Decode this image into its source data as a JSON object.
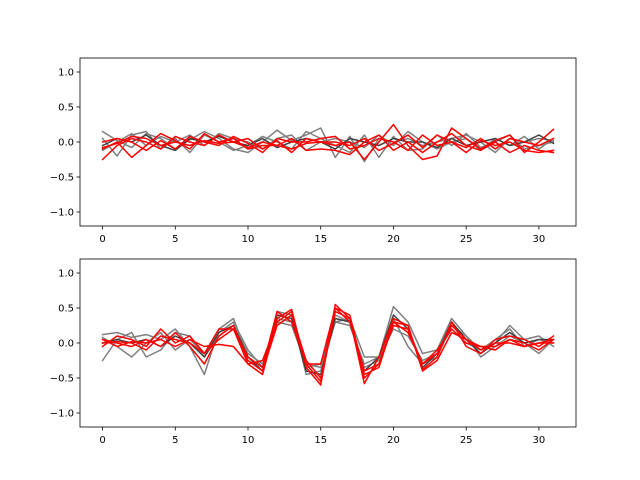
{
  "chart_data": [
    {
      "type": "line",
      "title": "",
      "xlabel": "",
      "ylabel": "",
      "xlim": [
        -1.55,
        32.55
      ],
      "ylim": [
        -1.2,
        1.2
      ],
      "xticks": [
        0,
        5,
        10,
        15,
        20,
        25,
        30
      ],
      "yticks": [
        -1.0,
        -0.5,
        0.0,
        0.5,
        1.0
      ],
      "xtick_labels": [
        "0",
        "5",
        "10",
        "15",
        "20",
        "25",
        "30"
      ],
      "ytick_labels": [
        "−1.0",
        "−0.5",
        "0.0",
        "0.5",
        "1.0"
      ],
      "grid": false,
      "x": [
        0,
        1,
        2,
        3,
        4,
        5,
        6,
        7,
        8,
        9,
        10,
        11,
        12,
        13,
        14,
        15,
        16,
        17,
        18,
        19,
        20,
        21,
        22,
        23,
        24,
        25,
        26,
        27,
        28,
        29,
        30,
        31
      ],
      "series": [
        {
          "color": "#7f7f7f",
          "values": [
            0.15,
            0.02,
            -0.08,
            0.12,
            0.05,
            -0.1,
            0.03,
            0.15,
            0.05,
            -0.1,
            -0.15,
            0.0,
            0.17,
            0.02,
            0.1,
            0.2,
            -0.22,
            0.08,
            -0.28,
            0.05,
            0.0,
            0.05,
            -0.05,
            0.0,
            0.05,
            0.1,
            0.0,
            -0.15,
            0.05,
            0.0,
            0.05,
            0.02
          ]
        },
        {
          "color": "#7f7f7f",
          "values": [
            0.05,
            -0.2,
            0.1,
            0.15,
            -0.1,
            0.05,
            -0.15,
            0.1,
            0.0,
            -0.12,
            -0.05,
            0.08,
            0.0,
            -0.1,
            0.15,
            0.05,
            -0.05,
            -0.15,
            0.1,
            -0.22,
            0.08,
            -0.12,
            -0.1,
            0.1,
            -0.05,
            0.12,
            -0.08,
            0.0,
            0.1,
            -0.1,
            -0.05,
            0.0
          ]
        },
        {
          "color": "#7f7f7f",
          "values": [
            -0.12,
            0.0,
            0.12,
            -0.05,
            0.08,
            0.0,
            0.1,
            -0.05,
            0.12,
            0.05,
            0.0,
            -0.1,
            0.05,
            0.1,
            -0.12,
            0.0,
            0.05,
            0.0,
            -0.08,
            0.1,
            -0.05,
            0.15,
            0.0,
            -0.1,
            0.0,
            0.05,
            -0.12,
            0.05,
            -0.05,
            0.08,
            -0.1,
            0.05
          ]
        },
        {
          "color": "#404040",
          "values": [
            -0.05,
            0.05,
            0.0,
            0.1,
            -0.05,
            -0.12,
            0.05,
            0.0,
            0.08,
            0.0,
            -0.05,
            0.05,
            -0.08,
            0.0,
            0.05,
            0.0,
            -0.1,
            0.05,
            0.0,
            -0.05,
            0.05,
            0.0,
            0.0,
            -0.08,
            0.05,
            -0.05,
            0.0,
            0.05,
            -0.05,
            0.0,
            0.1,
            -0.02
          ]
        },
        {
          "color": "#ff0000",
          "values": [
            -0.25,
            -0.05,
            0.05,
            0.0,
            -0.1,
            0.08,
            0.0,
            -0.05,
            0.1,
            0.0,
            0.05,
            -0.1,
            0.02,
            -0.15,
            0.05,
            0.0,
            -0.05,
            0.0,
            -0.25,
            0.0,
            0.25,
            -0.05,
            -0.25,
            -0.2,
            0.2,
            0.05,
            -0.1,
            0.02,
            0.1,
            -0.15,
            0.0,
            0.18
          ]
        },
        {
          "color": "#ff0000",
          "values": [
            -0.1,
            0.0,
            -0.22,
            -0.05,
            0.12,
            0.02,
            -0.1,
            0.12,
            0.0,
            0.05,
            -0.1,
            -0.05,
            -0.05,
            0.05,
            -0.12,
            -0.1,
            -0.12,
            -0.18,
            0.0,
            0.1,
            -0.12,
            0.0,
            -0.15,
            0.0,
            0.12,
            -0.05,
            -0.12,
            0.0,
            -0.15,
            -0.05,
            -0.12,
            -0.15
          ]
        },
        {
          "color": "#ff0000",
          "values": [
            0.0,
            0.05,
            0.0,
            -0.12,
            0.02,
            -0.1,
            0.08,
            0.0,
            -0.05,
            0.08,
            -0.02,
            -0.15,
            0.05,
            0.0,
            0.0,
            0.05,
            0.08,
            -0.1,
            -0.05,
            0.05,
            0.0,
            -0.12,
            0.1,
            -0.05,
            0.0,
            -0.08,
            0.05,
            -0.1,
            0.05,
            0.0,
            -0.05,
            0.05
          ]
        },
        {
          "color": "#ff0000",
          "values": [
            -0.08,
            -0.02,
            0.08,
            0.05,
            -0.05,
            0.0,
            -0.05,
            0.02,
            -0.02,
            0.0,
            -0.08,
            0.0,
            -0.05,
            -0.1,
            -0.02,
            0.0,
            0.0,
            -0.05,
            0.05,
            -0.12,
            -0.02,
            0.1,
            -0.08,
            0.1,
            0.0,
            -0.15,
            0.02,
            -0.05,
            0.0,
            -0.12,
            -0.15,
            -0.12
          ]
        }
      ]
    },
    {
      "type": "line",
      "title": "",
      "xlabel": "",
      "ylabel": "",
      "xlim": [
        -1.55,
        32.55
      ],
      "ylim": [
        -1.2,
        1.2
      ],
      "xticks": [
        0,
        5,
        10,
        15,
        20,
        25,
        30
      ],
      "yticks": [
        -1.0,
        -0.5,
        0.0,
        0.5,
        1.0
      ],
      "xtick_labels": [
        "0",
        "5",
        "10",
        "15",
        "20",
        "25",
        "30"
      ],
      "ytick_labels": [
        "−1.0",
        "−0.5",
        "0.0",
        "0.5",
        "1.0"
      ],
      "grid": false,
      "x": [
        0,
        1,
        2,
        3,
        4,
        5,
        6,
        7,
        8,
        9,
        10,
        11,
        12,
        13,
        14,
        15,
        16,
        17,
        18,
        19,
        20,
        21,
        22,
        23,
        24,
        25,
        26,
        27,
        28,
        29,
        30,
        31
      ],
      "series": [
        {
          "color": "#7f7f7f",
          "values": [
            0.12,
            0.15,
            0.08,
            0.12,
            0.05,
            0.2,
            -0.05,
            -0.45,
            0.2,
            0.35,
            -0.2,
            -0.4,
            0.45,
            0.4,
            -0.45,
            -0.4,
            0.3,
            0.35,
            -0.2,
            -0.2,
            0.52,
            0.3,
            -0.15,
            -0.1,
            0.35,
            0.1,
            -0.1,
            0.0,
            0.25,
            0.05,
            0.1,
            -0.05
          ]
        },
        {
          "color": "#7f7f7f",
          "values": [
            -0.25,
            0.05,
            0.15,
            -0.2,
            -0.1,
            0.15,
            0.1,
            -0.2,
            0.1,
            0.25,
            -0.15,
            -0.3,
            0.3,
            0.25,
            -0.3,
            -0.35,
            0.4,
            0.3,
            -0.35,
            -0.25,
            0.35,
            -0.05,
            -0.3,
            -0.2,
            0.25,
            0.1,
            -0.2,
            -0.05,
            0.1,
            0.0,
            -0.15,
            0.05
          ]
        },
        {
          "color": "#7f7f7f",
          "values": [
            0.08,
            -0.05,
            -0.2,
            0.0,
            0.15,
            -0.1,
            0.05,
            -0.15,
            0.15,
            0.3,
            -0.1,
            -0.35,
            0.35,
            0.3,
            -0.35,
            -0.3,
            0.3,
            0.25,
            -0.3,
            -0.2,
            0.2,
            0.1,
            -0.25,
            -0.15,
            0.2,
            0.0,
            -0.1,
            0.05,
            0.2,
            -0.05,
            0.05,
            0.0
          ]
        },
        {
          "color": "#404040",
          "values": [
            0.0,
            0.05,
            0.0,
            0.05,
            -0.05,
            0.1,
            0.0,
            -0.2,
            0.15,
            0.25,
            -0.2,
            -0.4,
            0.4,
            0.35,
            -0.4,
            -0.45,
            0.35,
            0.3,
            -0.4,
            -0.2,
            0.4,
            0.2,
            -0.35,
            -0.15,
            0.3,
            0.05,
            -0.15,
            0.0,
            0.15,
            0.0,
            0.05,
            0.05
          ]
        },
        {
          "color": "#ff0000",
          "values": [
            -0.05,
            0.1,
            0.05,
            -0.05,
            0.2,
            0.0,
            0.1,
            -0.15,
            0.05,
            0.2,
            -0.3,
            -0.45,
            0.35,
            0.48,
            -0.35,
            -0.6,
            0.55,
            0.35,
            -0.58,
            -0.2,
            0.35,
            0.25,
            -0.38,
            -0.2,
            0.3,
            -0.05,
            -0.15,
            0.05,
            0.1,
            0.05,
            -0.05,
            0.1
          ]
        },
        {
          "color": "#ff0000",
          "values": [
            0.05,
            0.0,
            -0.05,
            0.05,
            -0.05,
            0.15,
            -0.05,
            -0.3,
            0.1,
            0.25,
            -0.25,
            -0.4,
            0.25,
            0.4,
            -0.25,
            -0.5,
            0.5,
            0.4,
            -0.45,
            -0.35,
            0.3,
            0.15,
            -0.3,
            -0.1,
            0.2,
            0.0,
            -0.05,
            -0.1,
            0.05,
            0.0,
            -0.1,
            0.05
          ]
        },
        {
          "color": "#ff0000",
          "values": [
            0.0,
            0.02,
            0.0,
            -0.1,
            0.1,
            0.05,
            0.0,
            -0.15,
            0.2,
            0.2,
            -0.2,
            -0.35,
            0.45,
            0.3,
            -0.3,
            -0.55,
            0.45,
            0.35,
            -0.5,
            -0.3,
            0.3,
            0.25,
            -0.4,
            -0.25,
            0.15,
            0.05,
            -0.05,
            -0.05,
            0.05,
            -0.05,
            0.0,
            0.0
          ]
        },
        {
          "color": "#ff0000",
          "values": [
            0.05,
            -0.05,
            0.02,
            0.0,
            0.05,
            -0.05,
            0.05,
            -0.05,
            -0.02,
            -0.05,
            -0.3,
            -0.25,
            0.3,
            0.45,
            -0.3,
            -0.3,
            0.5,
            0.3,
            -0.4,
            -0.3,
            0.25,
            0.2,
            -0.3,
            -0.15,
            0.25,
            0.05,
            -0.1,
            0.0,
            0.0,
            -0.05,
            0.0,
            0.05
          ]
        }
      ]
    }
  ]
}
